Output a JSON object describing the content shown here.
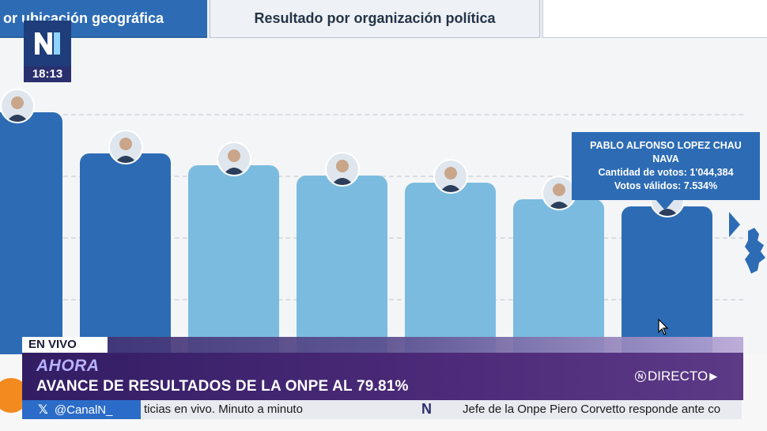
{
  "tabs": {
    "geo_label": "or ubicación geográfica",
    "org_label": "Resultado por organización política"
  },
  "channel": {
    "time": "18:13"
  },
  "chart_data": {
    "type": "bar",
    "title": "Resultado por organización política",
    "candidates": [
      {
        "name": "",
        "value": 100,
        "highlight": true
      },
      {
        "name": "",
        "value": 83,
        "highlight": true
      },
      {
        "name": "",
        "value": 78,
        "highlight": false
      },
      {
        "name": "",
        "value": 74,
        "highlight": false
      },
      {
        "name": "",
        "value": 71,
        "highlight": false
      },
      {
        "name": "",
        "value": 64,
        "highlight": false
      },
      {
        "name": "PABLO ALFONSO LOPEZ CHAU NAVA",
        "value": 61,
        "highlight": true
      }
    ],
    "colors": {
      "highlight": "#2d6cb5",
      "normal": "#7bbbe0"
    }
  },
  "tooltip": {
    "name": "PABLO ALFONSO LOPEZ CHAU NAVA",
    "votes_line": "Cantidad de votos: 1'044,384",
    "valid_line": "Votos válidos: 7.534%"
  },
  "overlay": {
    "live_tag": "EN VIVO",
    "ahora": "AHORA",
    "headline": "AVANCE DE RESULTADOS DE LA ONPE AL 79.81%",
    "directo": "DIRECTO",
    "ticker_handle": "@CanalN_",
    "ticker_text1": "ticias en vivo. Minuto a minuto",
    "ticker_text2": "Jefe de la Onpe Piero Corvetto responde ante co"
  }
}
